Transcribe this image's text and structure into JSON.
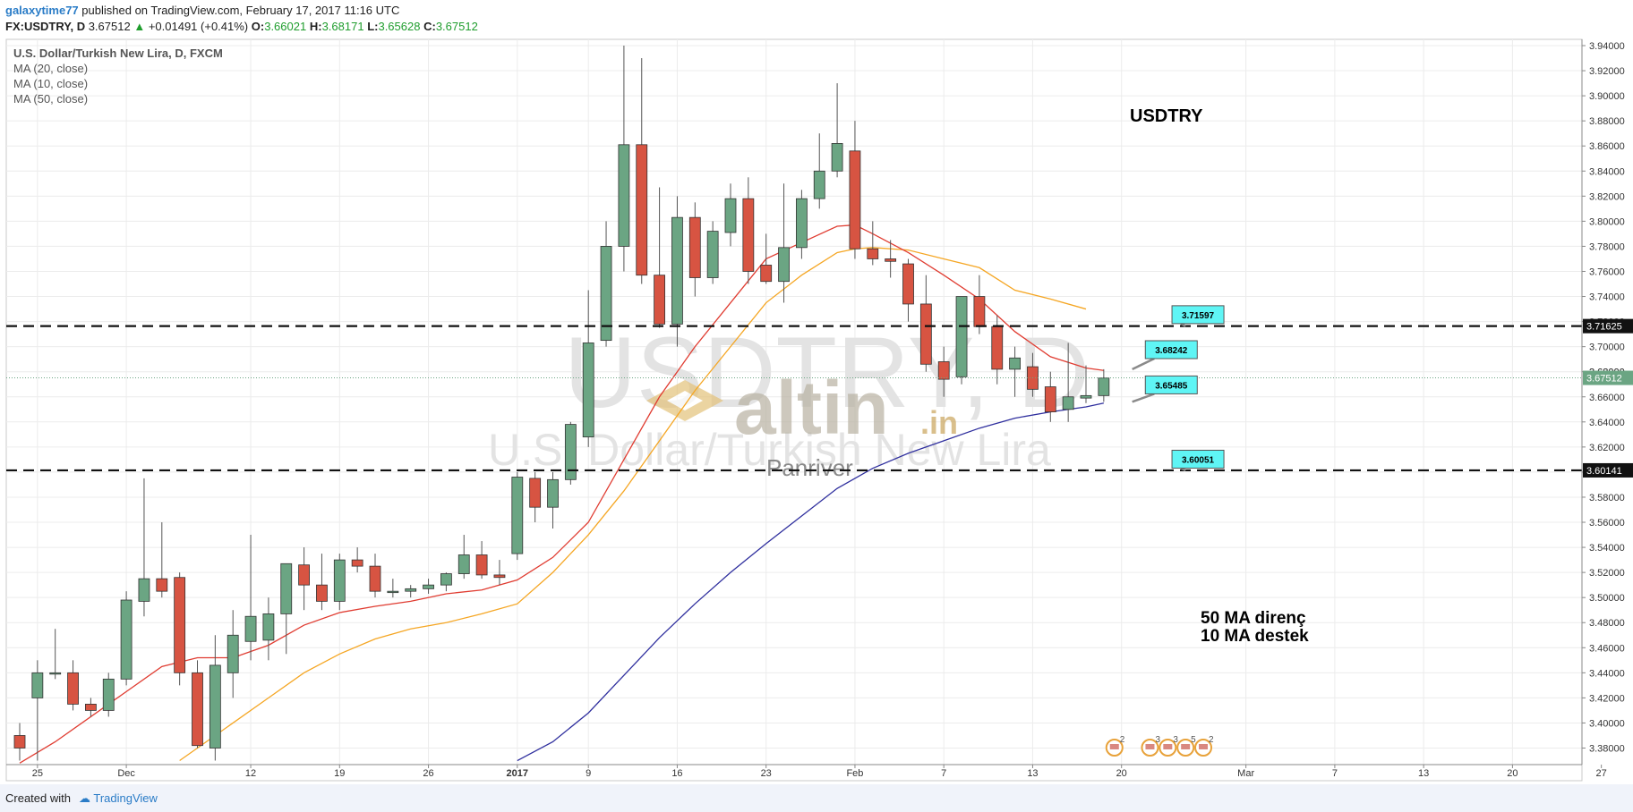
{
  "header": {
    "user": "galaxytime77",
    "published": "published on TradingView.com, February 17, 2017 11:16 UTC",
    "symbol": "FX:USDTRY, D",
    "last": "3.67512",
    "change": "+0.01491 (+0.41%)",
    "o_label": "O:",
    "o": "3.66021",
    "h_label": "H:",
    "h": "3.68171",
    "l_label": "L:",
    "l": "3.65628",
    "c_label": "C:",
    "c": "3.67512"
  },
  "legend": {
    "title": "U.S. Dollar/Turkish New Lira, D, FXCM",
    "ma20": "MA (20, close)",
    "ma10": "MA (10, close)",
    "ma50": "MA (50, close)"
  },
  "watermark": {
    "symbol": "USDTRY, D",
    "name": "U.S. Dollar/Turkish New Lira",
    "brand": "altin",
    "brand_suffix": ".in",
    "sub": "Panriver"
  },
  "annotations": {
    "title": "USDTRY",
    "note1": "50 MA direnç",
    "note2": "10 MA destek"
  },
  "footer": {
    "created": "Created with",
    "brand": "TradingView"
  },
  "colors": {
    "up": "#6ba583",
    "down": "#d75442",
    "ma20": "#f5a623",
    "ma10": "#e03c31",
    "ma50": "#2f2f9e",
    "callout": "#5ff5f5"
  },
  "chart_data": {
    "type": "candlestick",
    "ylim": [
      3.37,
      3.945
    ],
    "yticks": [
      "3.38000",
      "3.40000",
      "3.42000",
      "3.44000",
      "3.46000",
      "3.48000",
      "3.50000",
      "3.52000",
      "3.54000",
      "3.56000",
      "3.58000",
      "3.60000",
      "3.62000",
      "3.64000",
      "3.66000",
      "3.68000",
      "3.70000",
      "3.72000",
      "3.74000",
      "3.76000",
      "3.78000",
      "3.80000",
      "3.82000",
      "3.84000",
      "3.86000",
      "3.88000",
      "3.90000",
      "3.92000",
      "3.94000"
    ],
    "xticks": [
      {
        "i": 1,
        "label": "25"
      },
      {
        "i": 6,
        "label": "Dec"
      },
      {
        "i": 13,
        "label": "12"
      },
      {
        "i": 18,
        "label": "19"
      },
      {
        "i": 23,
        "label": "26"
      },
      {
        "i": 28,
        "label": "2017"
      },
      {
        "i": 32,
        "label": "9"
      },
      {
        "i": 37,
        "label": "16"
      },
      {
        "i": 42,
        "label": "23"
      },
      {
        "i": 47,
        "label": "Feb"
      },
      {
        "i": 52,
        "label": "7"
      },
      {
        "i": 57,
        "label": "13"
      },
      {
        "i": 62,
        "label": "20"
      },
      {
        "i": 69,
        "label": "Mar"
      },
      {
        "i": 74,
        "label": "7"
      },
      {
        "i": 79,
        "label": "13"
      },
      {
        "i": 84,
        "label": "20"
      },
      {
        "i": 89,
        "label": "27"
      }
    ],
    "candles": [
      [
        3.39,
        3.4,
        3.37,
        3.38
      ],
      [
        3.42,
        3.45,
        3.37,
        3.44
      ],
      [
        3.44,
        3.475,
        3.435,
        3.44
      ],
      [
        3.44,
        3.45,
        3.41,
        3.415
      ],
      [
        3.415,
        3.42,
        3.405,
        3.41
      ],
      [
        3.41,
        3.44,
        3.405,
        3.435
      ],
      [
        3.435,
        3.505,
        3.43,
        3.498
      ],
      [
        3.497,
        3.595,
        3.485,
        3.515
      ],
      [
        3.515,
        3.56,
        3.5,
        3.505
      ],
      [
        3.516,
        3.52,
        3.43,
        3.44
      ],
      [
        3.44,
        3.45,
        3.38,
        3.382
      ],
      [
        3.38,
        3.47,
        3.37,
        3.446
      ],
      [
        3.44,
        3.49,
        3.42,
        3.47
      ],
      [
        3.465,
        3.55,
        3.45,
        3.485
      ],
      [
        3.466,
        3.5,
        3.45,
        3.487
      ],
      [
        3.487,
        3.525,
        3.455,
        3.527
      ],
      [
        3.526,
        3.54,
        3.49,
        3.51
      ],
      [
        3.51,
        3.535,
        3.49,
        3.497
      ],
      [
        3.497,
        3.535,
        3.49,
        3.53
      ],
      [
        3.53,
        3.54,
        3.52,
        3.525
      ],
      [
        3.525,
        3.535,
        3.5,
        3.505
      ],
      [
        3.505,
        3.515,
        3.5,
        3.505
      ],
      [
        3.505,
        3.51,
        3.5,
        3.507
      ],
      [
        3.507,
        3.515,
        3.503,
        3.51
      ],
      [
        3.51,
        3.52,
        3.505,
        3.519
      ],
      [
        3.519,
        3.55,
        3.515,
        3.534
      ],
      [
        3.534,
        3.545,
        3.515,
        3.518
      ],
      [
        3.518,
        3.53,
        3.51,
        3.516
      ],
      [
        3.535,
        3.6,
        3.53,
        3.596
      ],
      [
        3.595,
        3.6,
        3.56,
        3.572
      ],
      [
        3.572,
        3.6,
        3.555,
        3.594
      ],
      [
        3.594,
        3.64,
        3.59,
        3.638
      ],
      [
        3.628,
        3.745,
        3.62,
        3.703
      ],
      [
        3.705,
        3.8,
        3.7,
        3.78
      ],
      [
        3.78,
        3.94,
        3.76,
        3.861
      ],
      [
        3.861,
        3.93,
        3.75,
        3.757
      ],
      [
        3.757,
        3.827,
        3.715,
        3.718
      ],
      [
        3.718,
        3.82,
        3.7,
        3.803
      ],
      [
        3.803,
        3.815,
        3.74,
        3.755
      ],
      [
        3.755,
        3.8,
        3.75,
        3.792
      ],
      [
        3.791,
        3.83,
        3.78,
        3.818
      ],
      [
        3.818,
        3.835,
        3.75,
        3.76
      ],
      [
        3.765,
        3.79,
        3.75,
        3.752
      ],
      [
        3.752,
        3.83,
        3.735,
        3.779
      ],
      [
        3.779,
        3.825,
        3.77,
        3.818
      ],
      [
        3.818,
        3.87,
        3.81,
        3.84
      ],
      [
        3.84,
        3.91,
        3.835,
        3.862
      ],
      [
        3.856,
        3.88,
        3.77,
        3.778
      ],
      [
        3.778,
        3.8,
        3.765,
        3.77
      ],
      [
        3.77,
        3.785,
        3.755,
        3.768
      ],
      [
        3.766,
        3.77,
        3.72,
        3.734
      ],
      [
        3.734,
        3.757,
        3.68,
        3.686
      ],
      [
        3.688,
        3.7,
        3.66,
        3.674
      ],
      [
        3.676,
        3.735,
        3.67,
        3.74
      ],
      [
        3.74,
        3.757,
        3.71,
        3.716
      ],
      [
        3.716,
        3.725,
        3.67,
        3.682
      ],
      [
        3.682,
        3.7,
        3.66,
        3.691
      ],
      [
        3.684,
        3.695,
        3.66,
        3.666
      ],
      [
        3.668,
        3.68,
        3.64,
        3.648
      ],
      [
        3.65,
        3.703,
        3.64,
        3.66
      ],
      [
        3.659,
        3.685,
        3.655,
        3.661
      ],
      [
        3.661,
        3.682,
        3.656,
        3.675
      ]
    ],
    "ma20": [
      [
        0,
        3.368
      ],
      [
        2,
        3.385
      ],
      [
        4,
        3.405
      ],
      [
        6,
        3.425
      ],
      [
        8,
        3.445
      ],
      [
        10,
        3.452
      ],
      [
        12,
        3.452
      ],
      [
        14,
        3.462
      ],
      [
        16,
        3.478
      ],
      [
        18,
        3.488
      ],
      [
        20,
        3.493
      ],
      [
        22,
        3.497
      ],
      [
        24,
        3.503
      ],
      [
        26,
        3.506
      ],
      [
        28,
        3.514
      ],
      [
        30,
        3.532
      ],
      [
        32,
        3.56
      ],
      [
        34,
        3.61
      ],
      [
        36,
        3.66
      ],
      [
        38,
        3.7
      ],
      [
        40,
        3.735
      ],
      [
        42,
        3.77
      ],
      [
        44,
        3.783
      ],
      [
        46,
        3.796
      ],
      [
        47,
        3.797
      ],
      [
        48,
        3.79
      ],
      [
        50,
        3.775
      ],
      [
        52,
        3.757
      ],
      [
        54,
        3.738
      ],
      [
        56,
        3.712
      ],
      [
        58,
        3.692
      ],
      [
        60,
        3.683
      ],
      [
        61,
        3.681
      ]
    ],
    "ma10": [
      [
        9,
        3.37
      ],
      [
        10,
        3.38
      ],
      [
        12,
        3.4
      ],
      [
        14,
        3.42
      ],
      [
        16,
        3.44
      ],
      [
        18,
        3.455
      ],
      [
        20,
        3.467
      ],
      [
        22,
        3.475
      ],
      [
        24,
        3.48
      ],
      [
        26,
        3.487
      ],
      [
        28,
        3.495
      ],
      [
        30,
        3.52
      ],
      [
        32,
        3.55
      ],
      [
        34,
        3.585
      ],
      [
        36,
        3.625
      ],
      [
        38,
        3.665
      ],
      [
        40,
        3.7
      ],
      [
        42,
        3.735
      ],
      [
        44,
        3.757
      ],
      [
        46,
        3.775
      ],
      [
        47,
        3.778
      ],
      [
        48,
        3.779
      ],
      [
        50,
        3.777
      ],
      [
        52,
        3.77
      ],
      [
        54,
        3.763
      ],
      [
        56,
        3.745
      ],
      [
        58,
        3.738
      ],
      [
        60,
        3.73
      ]
    ],
    "ma50": [
      [
        28,
        3.37
      ],
      [
        30,
        3.385
      ],
      [
        32,
        3.408
      ],
      [
        34,
        3.438
      ],
      [
        36,
        3.468
      ],
      [
        38,
        3.495
      ],
      [
        40,
        3.52
      ],
      [
        42,
        3.543
      ],
      [
        44,
        3.565
      ],
      [
        46,
        3.587
      ],
      [
        47,
        3.595
      ],
      [
        48,
        3.603
      ],
      [
        50,
        3.615
      ],
      [
        52,
        3.625
      ],
      [
        54,
        3.635
      ],
      [
        56,
        3.643
      ],
      [
        58,
        3.648
      ],
      [
        60,
        3.652
      ],
      [
        61,
        3.655
      ]
    ],
    "hlines": [
      {
        "value": 3.7164,
        "label": "3.71625"
      },
      {
        "value": 3.6014,
        "label": "3.60141"
      }
    ],
    "last_price": {
      "value": 3.67512,
      "label": "3.67512"
    },
    "hidden_tick": {
      "value": 3.68,
      "label": "3.68000"
    },
    "callouts": [
      {
        "label": "3.71597",
        "i": 66.3,
        "value": 3.7255,
        "tip_i": 65.2,
        "tip_v": 3.7164
      },
      {
        "label": "3.68242",
        "i": 64.8,
        "value": 3.6976,
        "tip_i": 62.2,
        "tip_v": 3.682
      },
      {
        "label": "3.65485",
        "i": 64.8,
        "value": 3.6695,
        "tip_i": 62.2,
        "tip_v": 3.656
      },
      {
        "label": "3.60051",
        "i": 66.3,
        "value": 3.6103,
        "tip_i": 65.2,
        "tip_v": 3.6014
      }
    ],
    "events": [
      {
        "i": 61.5,
        "count": "2"
      },
      {
        "i": 63.5,
        "count": "3"
      },
      {
        "i": 64.5,
        "count": "3"
      },
      {
        "i": 65.5,
        "count": "5"
      },
      {
        "i": 66.5,
        "count": "2"
      }
    ]
  }
}
